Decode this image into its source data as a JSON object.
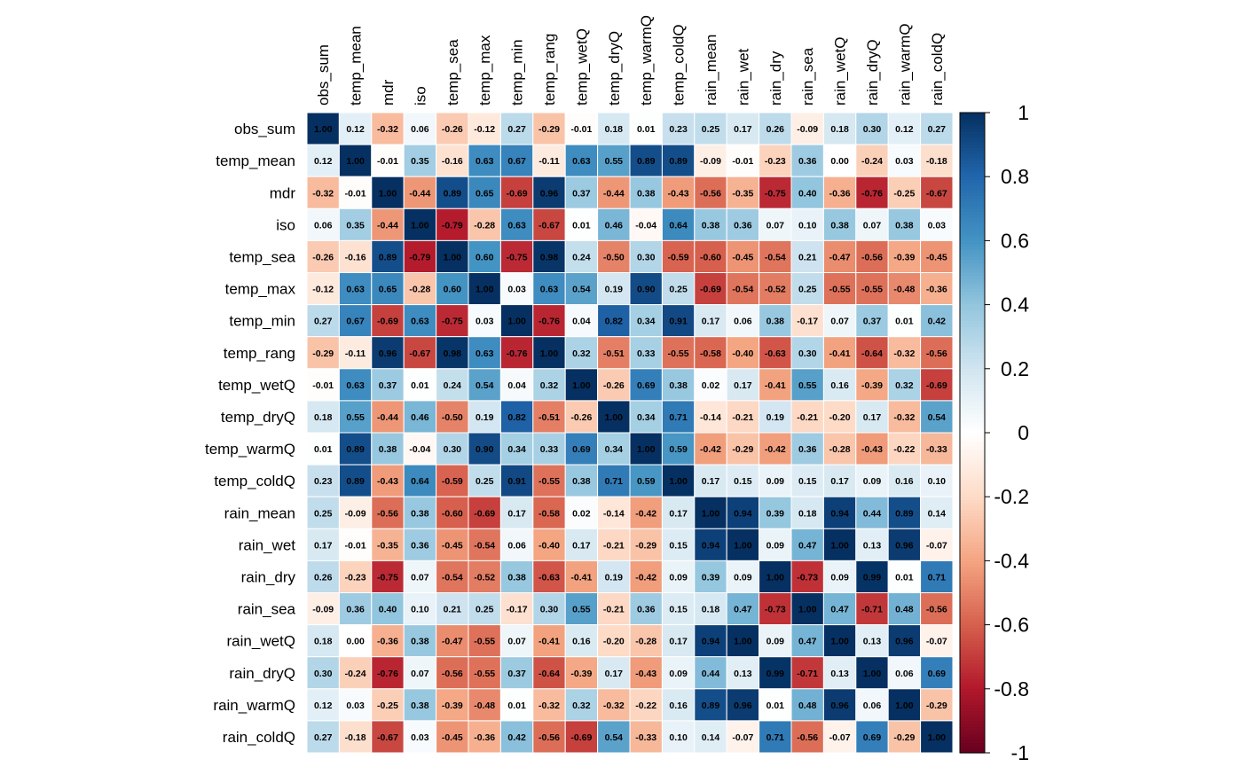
{
  "chart_data": {
    "type": "heatmap",
    "title": "",
    "variables": [
      "obs_sum",
      "temp_mean",
      "mdr",
      "iso",
      "temp_sea",
      "temp_max",
      "temp_min",
      "temp_rang",
      "temp_wetQ",
      "temp_dryQ",
      "temp_warmQ",
      "temp_coldQ",
      "rain_mean",
      "rain_wet",
      "rain_dry",
      "rain_sea",
      "rain_wetQ",
      "rain_dryQ",
      "rain_warmQ",
      "rain_coldQ"
    ],
    "matrix": [
      [
        1.0,
        0.12,
        -0.32,
        0.06,
        -0.26,
        -0.12,
        0.27,
        -0.29,
        -0.01,
        0.18,
        0.01,
        0.23,
        0.25,
        0.17,
        0.26,
        -0.09,
        0.18,
        0.3,
        0.12,
        0.27
      ],
      [
        0.12,
        1.0,
        -0.01,
        0.35,
        -0.16,
        0.63,
        0.67,
        -0.11,
        0.63,
        0.55,
        0.89,
        0.89,
        -0.09,
        -0.01,
        -0.23,
        0.36,
        0.0,
        -0.24,
        0.03,
        -0.18
      ],
      [
        -0.32,
        -0.01,
        1.0,
        -0.44,
        0.89,
        0.65,
        -0.69,
        0.96,
        0.37,
        -0.44,
        0.38,
        -0.43,
        -0.56,
        -0.35,
        -0.75,
        0.4,
        -0.36,
        -0.76,
        -0.25,
        -0.67
      ],
      [
        0.06,
        0.35,
        -0.44,
        1.0,
        -0.79,
        -0.28,
        0.63,
        -0.67,
        0.01,
        0.46,
        -0.04,
        0.64,
        0.38,
        0.36,
        0.07,
        0.1,
        0.38,
        0.07,
        0.38,
        0.03
      ],
      [
        -0.26,
        -0.16,
        0.89,
        -0.79,
        1.0,
        0.6,
        -0.75,
        0.98,
        0.24,
        -0.5,
        0.3,
        -0.59,
        -0.6,
        -0.45,
        -0.54,
        0.21,
        -0.47,
        -0.56,
        -0.39,
        -0.45
      ],
      [
        -0.12,
        0.63,
        0.65,
        -0.28,
        0.6,
        1.0,
        0.03,
        0.63,
        0.54,
        0.19,
        0.9,
        0.25,
        -0.69,
        -0.54,
        -0.52,
        0.25,
        -0.55,
        -0.55,
        -0.48,
        -0.36
      ],
      [
        0.27,
        0.67,
        -0.69,
        0.63,
        -0.75,
        0.03,
        1.0,
        -0.76,
        0.04,
        0.82,
        0.34,
        0.91,
        0.17,
        0.06,
        0.38,
        -0.17,
        0.07,
        0.37,
        0.01,
        0.42
      ],
      [
        -0.29,
        -0.11,
        0.96,
        -0.67,
        0.98,
        0.63,
        -0.76,
        1.0,
        0.32,
        -0.51,
        0.33,
        -0.55,
        -0.58,
        -0.4,
        -0.63,
        0.3,
        -0.41,
        -0.64,
        -0.32,
        -0.56
      ],
      [
        -0.01,
        0.63,
        0.37,
        0.01,
        0.24,
        0.54,
        0.04,
        0.32,
        1.0,
        -0.26,
        0.69,
        0.38,
        0.02,
        0.17,
        -0.41,
        0.55,
        0.16,
        -0.39,
        0.32,
        -0.69
      ],
      [
        0.18,
        0.55,
        -0.44,
        0.46,
        -0.5,
        0.19,
        0.82,
        -0.51,
        -0.26,
        1.0,
        0.34,
        0.71,
        -0.14,
        -0.21,
        0.19,
        -0.21,
        -0.2,
        0.17,
        -0.32,
        0.54
      ],
      [
        0.01,
        0.89,
        0.38,
        -0.04,
        0.3,
        0.9,
        0.34,
        0.33,
        0.69,
        0.34,
        1.0,
        0.59,
        -0.42,
        -0.29,
        -0.42,
        0.36,
        -0.28,
        -0.43,
        -0.22,
        -0.33
      ],
      [
        0.23,
        0.89,
        -0.43,
        0.64,
        -0.59,
        0.25,
        0.91,
        -0.55,
        0.38,
        0.71,
        0.59,
        1.0,
        0.17,
        0.15,
        0.09,
        0.15,
        0.17,
        0.09,
        0.16,
        0.1
      ],
      [
        0.25,
        -0.09,
        -0.56,
        0.38,
        -0.6,
        -0.69,
        0.17,
        -0.58,
        0.02,
        -0.14,
        -0.42,
        0.17,
        1.0,
        0.94,
        0.39,
        0.18,
        0.94,
        0.44,
        0.89,
        0.14
      ],
      [
        0.17,
        -0.01,
        -0.35,
        0.36,
        -0.45,
        -0.54,
        0.06,
        -0.4,
        0.17,
        -0.21,
        -0.29,
        0.15,
        0.94,
        1.0,
        0.09,
        0.47,
        1.0,
        0.13,
        0.96,
        -0.07
      ],
      [
        0.26,
        -0.23,
        -0.75,
        0.07,
        -0.54,
        -0.52,
        0.38,
        -0.63,
        -0.41,
        0.19,
        -0.42,
        0.09,
        0.39,
        0.09,
        1.0,
        -0.73,
        0.09,
        0.99,
        0.01,
        0.71
      ],
      [
        -0.09,
        0.36,
        0.4,
        0.1,
        0.21,
        0.25,
        -0.17,
        0.3,
        0.55,
        -0.21,
        0.36,
        0.15,
        0.18,
        0.47,
        -0.73,
        1.0,
        0.47,
        -0.71,
        0.48,
        -0.56
      ],
      [
        0.18,
        0.0,
        -0.36,
        0.38,
        -0.47,
        -0.55,
        0.07,
        -0.41,
        0.16,
        -0.2,
        -0.28,
        0.17,
        0.94,
        1.0,
        0.09,
        0.47,
        1.0,
        0.13,
        0.96,
        -0.07
      ],
      [
        0.3,
        -0.24,
        -0.76,
        0.07,
        -0.56,
        -0.55,
        0.37,
        -0.64,
        -0.39,
        0.17,
        -0.43,
        0.09,
        0.44,
        0.13,
        0.99,
        -0.71,
        0.13,
        1.0,
        0.06,
        0.69
      ],
      [
        0.12,
        0.03,
        -0.25,
        0.38,
        -0.39,
        -0.48,
        0.01,
        -0.32,
        0.32,
        -0.32,
        -0.22,
        0.16,
        0.89,
        0.96,
        0.01,
        0.48,
        0.96,
        0.06,
        1.0,
        -0.29
      ],
      [
        0.27,
        -0.18,
        -0.67,
        0.03,
        -0.45,
        -0.36,
        0.42,
        -0.56,
        -0.69,
        0.54,
        -0.33,
        0.1,
        0.14,
        -0.07,
        0.71,
        -0.56,
        -0.07,
        0.69,
        -0.29,
        1.0
      ]
    ],
    "value_range": [
      -1,
      1
    ],
    "colorbar": {
      "ticks": [
        1,
        0.8,
        0.6,
        0.4,
        0.2,
        0,
        -0.2,
        -0.4,
        -0.6,
        -0.8,
        -1
      ],
      "tick_labels": [
        "1",
        "0.8",
        "0.6",
        "0.4",
        "0.2",
        "0",
        "-0.2",
        "-0.4",
        "-0.6",
        "-0.8",
        "-1"
      ]
    },
    "color_scale": [
      "#67001F",
      "#B2182B",
      "#D6604D",
      "#F4A582",
      "#FDDBC7",
      "#FFFFFF",
      "#D1E5F0",
      "#92C5DE",
      "#4393C3",
      "#2166AC",
      "#053061"
    ],
    "cell_text_colors": {
      "light": "#000000",
      "dark": "#ffffff"
    },
    "grid": true,
    "legend_position": "right"
  }
}
